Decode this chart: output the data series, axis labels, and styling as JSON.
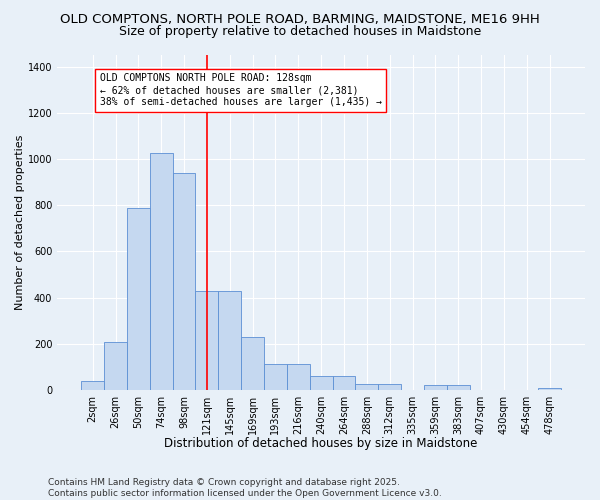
{
  "title": "OLD COMPTONS, NORTH POLE ROAD, BARMING, MAIDSTONE, ME16 9HH",
  "subtitle": "Size of property relative to detached houses in Maidstone",
  "xlabel": "Distribution of detached houses by size in Maidstone",
  "ylabel": "Number of detached properties",
  "categories": [
    "2sqm",
    "26sqm",
    "50sqm",
    "74sqm",
    "98sqm",
    "121sqm",
    "145sqm",
    "169sqm",
    "193sqm",
    "216sqm",
    "240sqm",
    "264sqm",
    "288sqm",
    "312sqm",
    "335sqm",
    "359sqm",
    "383sqm",
    "407sqm",
    "430sqm",
    "454sqm",
    "478sqm"
  ],
  "values": [
    40,
    210,
    790,
    1025,
    940,
    430,
    430,
    230,
    115,
    115,
    60,
    60,
    25,
    25,
    0,
    20,
    20,
    0,
    0,
    0,
    8
  ],
  "bar_color": "#c5d8f0",
  "bar_edge_color": "#5b8fd4",
  "vline_x": 5.0,
  "vline_color": "red",
  "vline_linewidth": 1.2,
  "annotation_text": "OLD COMPTONS NORTH POLE ROAD: 128sqm\n← 62% of detached houses are smaller (2,381)\n38% of semi-detached houses are larger (1,435) →",
  "background_color": "#e8f0f8",
  "grid_color": "#c8d8e8",
  "ylim": [
    0,
    1450
  ],
  "yticks": [
    0,
    200,
    400,
    600,
    800,
    1000,
    1200,
    1400
  ],
  "footer": "Contains HM Land Registry data © Crown copyright and database right 2025.\nContains public sector information licensed under the Open Government Licence v3.0.",
  "title_fontsize": 9.5,
  "subtitle_fontsize": 9,
  "xlabel_fontsize": 8.5,
  "ylabel_fontsize": 8,
  "tick_fontsize": 7,
  "annotation_fontsize": 7,
  "footer_fontsize": 6.5
}
